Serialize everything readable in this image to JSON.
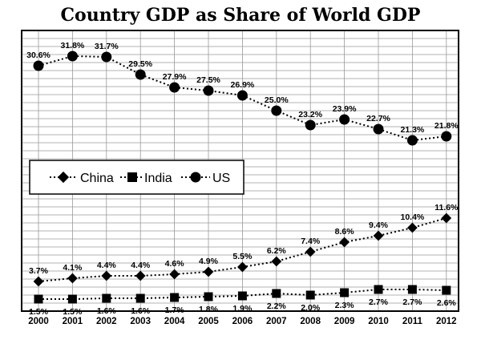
{
  "chart_data": {
    "type": "line",
    "title": "Country GDP as Share of World GDP",
    "xlabel": "",
    "ylabel": "",
    "categories": [
      "2000",
      "2001",
      "2002",
      "2003",
      "2004",
      "2005",
      "2006",
      "2007",
      "2008",
      "2009",
      "2010",
      "2011",
      "2012"
    ],
    "series": [
      {
        "name": "China",
        "marker": "diamond",
        "values": [
          3.7,
          4.1,
          4.4,
          4.4,
          4.6,
          4.9,
          5.5,
          6.2,
          7.4,
          8.6,
          9.4,
          10.4,
          11.6
        ],
        "labels": [
          "3.7%",
          "4.1%",
          "4.4%",
          "4.4%",
          "4.6%",
          "4.9%",
          "5.5%",
          "6.2%",
          "7.4%",
          "8.6%",
          "9.4%",
          "10.4%",
          "11.6%"
        ]
      },
      {
        "name": "India",
        "marker": "square",
        "values": [
          1.5,
          1.5,
          1.6,
          1.6,
          1.7,
          1.8,
          1.9,
          2.2,
          2.0,
          2.3,
          2.7,
          2.7,
          2.6
        ],
        "labels": [
          "1.5%",
          "1.5%",
          "1.6%",
          "1.6%",
          "1.7%",
          "1.8%",
          "1.9%",
          "2.2%",
          "2.0%",
          "2.3%",
          "2.7%",
          "2.7%",
          "2.6%"
        ]
      },
      {
        "name": "US",
        "marker": "circle",
        "values": [
          30.6,
          31.8,
          31.7,
          29.5,
          27.9,
          27.5,
          26.9,
          25.0,
          23.2,
          23.9,
          22.7,
          21.3,
          21.8
        ],
        "labels": [
          "30.6%",
          "31.8%",
          "31.7%",
          "29.5%",
          "27.9%",
          "27.5%",
          "26.9%",
          "25.0%",
          "23.2%",
          "23.9%",
          "22.7%",
          "21.3%",
          "21.8%"
        ]
      }
    ],
    "ylim": [
      0,
      35
    ],
    "grid": true,
    "legend": "middle-left"
  }
}
